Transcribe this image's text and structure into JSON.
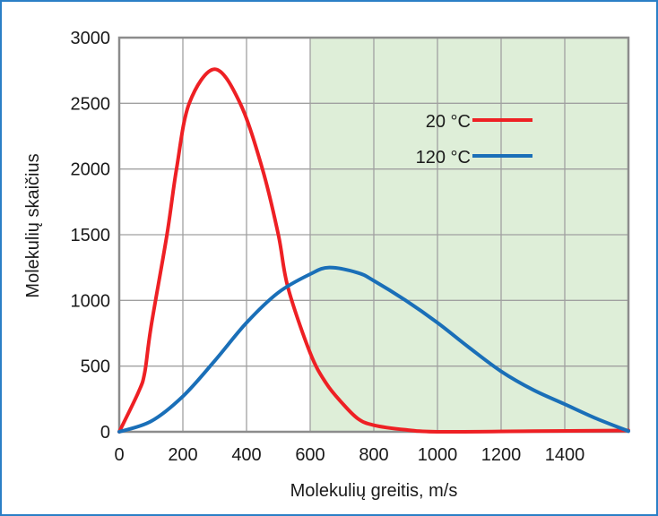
{
  "chart_data": {
    "type": "line",
    "title": "",
    "xlabel": "Molekulių greitis, m/s",
    "ylabel": "Molekulių skaičius",
    "xlim": [
      0,
      1600
    ],
    "ylim": [
      0,
      3000
    ],
    "xticks": [
      0,
      200,
      400,
      600,
      800,
      1000,
      1200,
      1400
    ],
    "yticks": [
      0,
      500,
      1000,
      1500,
      2000,
      2500,
      3000
    ],
    "grid": true,
    "shaded_region": {
      "x_from": 600,
      "x_to": 1600,
      "color": "#deeed8"
    },
    "legend_placement": "top-right",
    "series": [
      {
        "name": "20 °C",
        "color": "#ee2024",
        "x": [
          0,
          60,
          80,
          100,
          150,
          180,
          220,
          300,
          380,
          450,
          500,
          530,
          600,
          650,
          700,
          750,
          800,
          900,
          1000,
          1300,
          1600
        ],
        "y": [
          0,
          300,
          450,
          800,
          1500,
          2000,
          2500,
          2760,
          2500,
          2000,
          1500,
          1100,
          600,
          370,
          220,
          100,
          50,
          15,
          0,
          5,
          10
        ]
      },
      {
        "name": "120 °C",
        "color": "#1a6fb8",
        "x": [
          0,
          100,
          200,
          300,
          400,
          500,
          600,
          660,
          750,
          800,
          900,
          1000,
          1100,
          1200,
          1300,
          1400,
          1500,
          1600
        ],
        "y": [
          0,
          80,
          270,
          540,
          830,
          1060,
          1200,
          1250,
          1210,
          1150,
          1000,
          830,
          640,
          460,
          320,
          210,
          100,
          5
        ]
      }
    ]
  }
}
